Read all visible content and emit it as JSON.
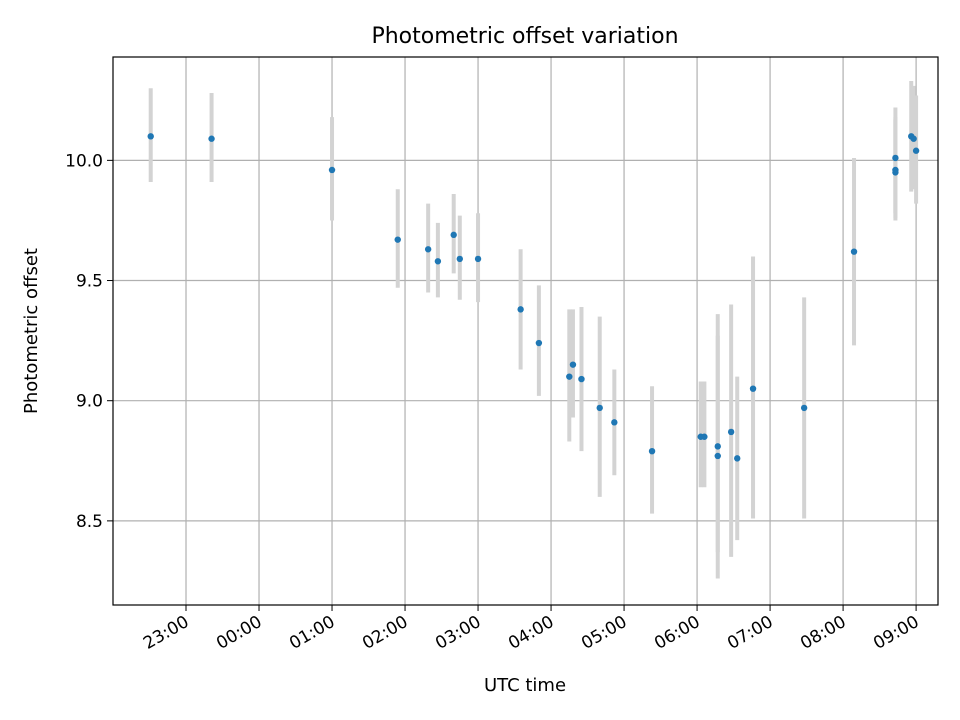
{
  "chart_data": {
    "type": "scatter",
    "title": "Photometric offset variation",
    "xlabel": "UTC time",
    "ylabel": "Photometric offset",
    "x_axis": {
      "ticks": [
        "23:00",
        "00:00",
        "01:00",
        "02:00",
        "03:00",
        "04:00",
        "05:00",
        "06:00",
        "07:00",
        "08:00",
        "09:00"
      ],
      "range_hours": [
        22.0,
        33.3
      ]
    },
    "y_axis": {
      "ticks": [
        8.5,
        9.0,
        9.5,
        10.0
      ],
      "tick_labels": [
        "8.5",
        "9.0",
        "9.5",
        "10.0"
      ],
      "range": [
        8.15,
        10.43
      ]
    },
    "grid": true,
    "marker_color": "#1f77b4",
    "errorbar_color": "#d3d3d3",
    "points": [
      {
        "t": "22:31",
        "y": 10.1,
        "lo": 9.91,
        "hi": 10.3
      },
      {
        "t": "23:21",
        "y": 10.09,
        "lo": 9.91,
        "hi": 10.28
      },
      {
        "t": "01:00",
        "y": 9.96,
        "lo": 9.75,
        "hi": 10.18
      },
      {
        "t": "01:54",
        "y": 9.67,
        "lo": 9.47,
        "hi": 9.88
      },
      {
        "t": "02:19",
        "y": 9.63,
        "lo": 9.45,
        "hi": 9.82
      },
      {
        "t": "02:27",
        "y": 9.58,
        "lo": 9.43,
        "hi": 9.74
      },
      {
        "t": "02:40",
        "y": 9.69,
        "lo": 9.53,
        "hi": 9.86
      },
      {
        "t": "02:45",
        "y": 9.59,
        "lo": 9.42,
        "hi": 9.77
      },
      {
        "t": "03:00",
        "y": 9.59,
        "lo": 9.41,
        "hi": 9.78
      },
      {
        "t": "03:35",
        "y": 9.38,
        "lo": 9.13,
        "hi": 9.63
      },
      {
        "t": "03:50",
        "y": 9.24,
        "lo": 9.02,
        "hi": 9.48
      },
      {
        "t": "04:15",
        "y": 9.1,
        "lo": 8.83,
        "hi": 9.38
      },
      {
        "t": "04:18",
        "y": 9.15,
        "lo": 8.93,
        "hi": 9.38
      },
      {
        "t": "04:25",
        "y": 9.09,
        "lo": 8.79,
        "hi": 9.39
      },
      {
        "t": "04:40",
        "y": 8.97,
        "lo": 8.6,
        "hi": 9.35
      },
      {
        "t": "04:52",
        "y": 8.91,
        "lo": 8.69,
        "hi": 9.13
      },
      {
        "t": "05:23",
        "y": 8.79,
        "lo": 8.53,
        "hi": 9.06
      },
      {
        "t": "06:03",
        "y": 8.85,
        "lo": 8.64,
        "hi": 9.08
      },
      {
        "t": "06:06",
        "y": 8.85,
        "lo": 8.64,
        "hi": 9.08
      },
      {
        "t": "06:17",
        "y": 8.81,
        "lo": 8.37,
        "hi": 9.36
      },
      {
        "t": "06:17",
        "y": 8.77,
        "lo": 8.26,
        "hi": 9.27
      },
      {
        "t": "06:28",
        "y": 8.87,
        "lo": 8.35,
        "hi": 9.4
      },
      {
        "t": "06:33",
        "y": 8.76,
        "lo": 8.42,
        "hi": 9.1
      },
      {
        "t": "06:46",
        "y": 9.05,
        "lo": 8.51,
        "hi": 9.6
      },
      {
        "t": "07:28",
        "y": 8.97,
        "lo": 8.51,
        "hi": 9.43
      },
      {
        "t": "08:09",
        "y": 9.62,
        "lo": 9.23,
        "hi": 10.01
      },
      {
        "t": "08:43",
        "y": 9.95,
        "lo": 9.76,
        "hi": 10.17
      },
      {
        "t": "08:43",
        "y": 10.01,
        "lo": 9.78,
        "hi": 10.22
      },
      {
        "t": "08:43",
        "y": 9.96,
        "lo": 9.75,
        "hi": 10.18
      },
      {
        "t": "08:56",
        "y": 10.1,
        "lo": 9.87,
        "hi": 10.33
      },
      {
        "t": "08:58",
        "y": 10.09,
        "lo": 9.88,
        "hi": 10.31
      },
      {
        "t": "09:00",
        "y": 10.04,
        "lo": 9.82,
        "hi": 10.27
      }
    ]
  }
}
